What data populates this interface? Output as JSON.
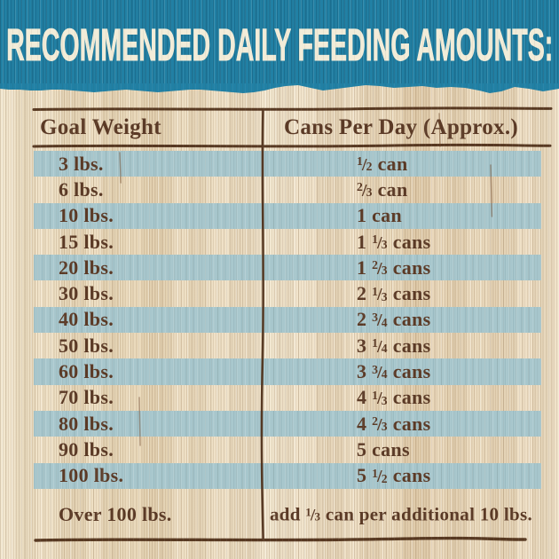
{
  "header": {
    "title": "RECOMMENDED DAILY FEEDING AMOUNTS:"
  },
  "chart_data": {
    "type": "table",
    "title": "RECOMMENDED DAILY FEEDING AMOUNTS:",
    "columns": [
      "Goal Weight",
      "Cans Per Day (Approx.)"
    ],
    "rows": [
      [
        "3 lbs.",
        "1/2 can"
      ],
      [
        "6 lbs.",
        "2/3 can"
      ],
      [
        "10 lbs.",
        "1 can"
      ],
      [
        "15 lbs.",
        "1 1/3 cans"
      ],
      [
        "20 lbs.",
        "1 2/3 cans"
      ],
      [
        "30 lbs.",
        "2 1/3 cans"
      ],
      [
        "40 lbs.",
        "2 3/4 cans"
      ],
      [
        "50 lbs.",
        "3 1/4 cans"
      ],
      [
        "60 lbs.",
        "3 3/4 cans"
      ],
      [
        "70 lbs.",
        "4 1/3 cans"
      ],
      [
        "80 lbs.",
        "4 2/3 cans"
      ],
      [
        "90 lbs.",
        "5 cans"
      ],
      [
        "100 lbs.",
        "5 1/2 cans"
      ],
      [
        "Over 100 lbs.",
        "add 1/3 can per additional 10 lbs."
      ]
    ],
    "layout": {
      "striped_rows": "every other row starting with the first",
      "grid": "outer top and bottom rules, header rule, single vertical divider"
    }
  },
  "colors": {
    "teal": "#2180a4",
    "stripe": "#a7c6cc",
    "wood": "#ecddc2",
    "text": "#5b3a26",
    "line": "#4c2c16",
    "cream": "#f2ecd8"
  }
}
